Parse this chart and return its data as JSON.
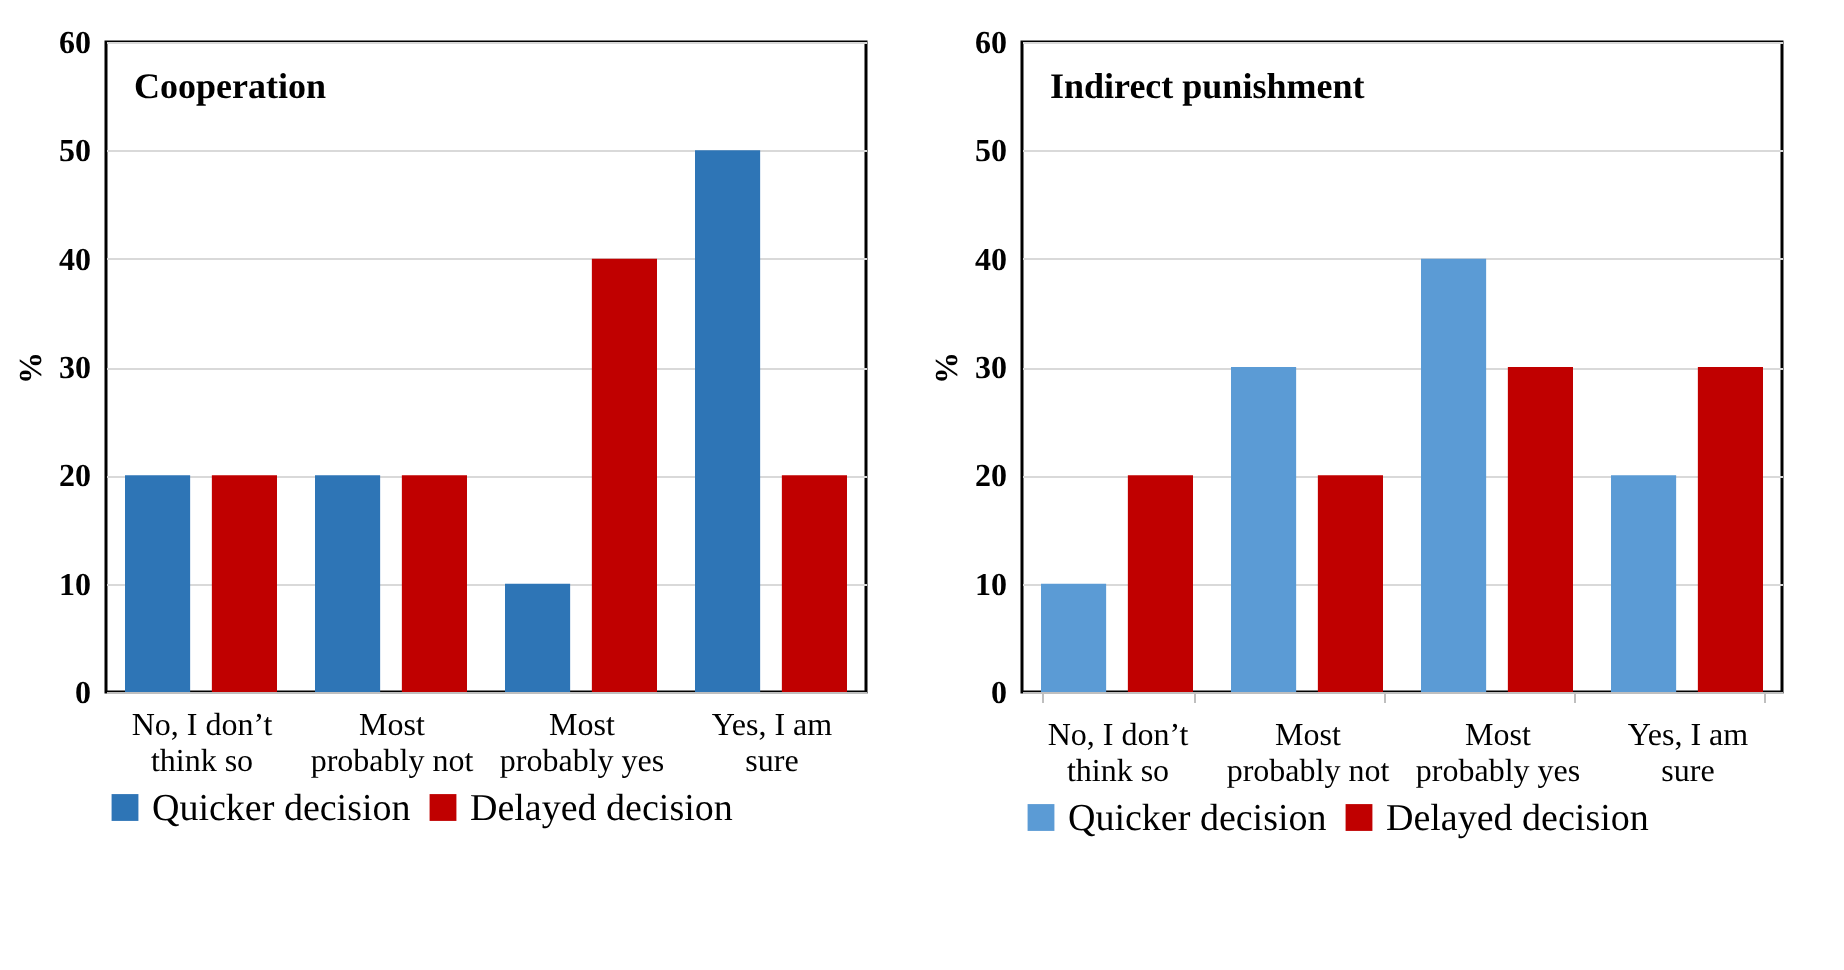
{
  "chart_data": [
    {
      "type": "bar",
      "title": "Cooperation",
      "ylabel": "%",
      "categories": [
        "No, I don’t think so",
        "Most probably not",
        "Most probably yes",
        "Yes, I am sure"
      ],
      "series": [
        {
          "name": "Quicker decision",
          "color": "#2e75b6",
          "values": [
            20,
            20,
            10,
            50
          ]
        },
        {
          "name": "Delayed decision",
          "color": "#c00000",
          "values": [
            20,
            20,
            40,
            20
          ]
        }
      ],
      "ylim": [
        0,
        60
      ],
      "yticks": [
        0,
        10,
        20,
        30,
        40,
        50,
        60
      ],
      "grid": "y",
      "legend": "bottom"
    },
    {
      "type": "bar",
      "title": "Indirect punishment",
      "ylabel": "%",
      "categories": [
        "No, I don’t think so",
        "Most probably not",
        "Most probably yes",
        "Yes, I am sure"
      ],
      "series": [
        {
          "name": "Quicker decision",
          "color": "#5b9bd5",
          "values": [
            10,
            30,
            40,
            20
          ]
        },
        {
          "name": "Delayed decision",
          "color": "#c00000",
          "values": [
            20,
            20,
            30,
            30
          ]
        }
      ],
      "ylim": [
        0,
        60
      ],
      "yticks": [
        0,
        10,
        20,
        30,
        40,
        50,
        60
      ],
      "grid": "y",
      "legend": "bottom"
    }
  ]
}
